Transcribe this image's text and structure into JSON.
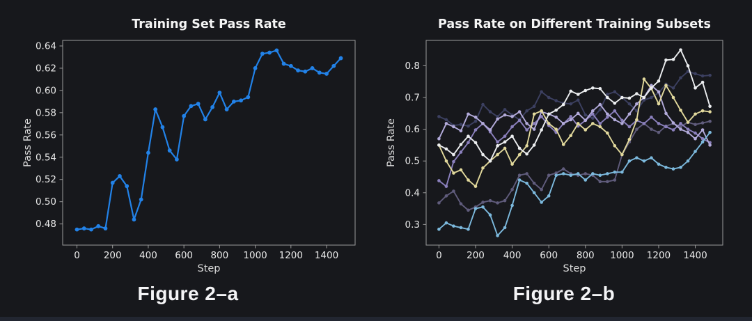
{
  "page": {
    "background": "#17181c",
    "bottom_bar_color": "#222631",
    "axis_color": "#9b9b9b",
    "tick_label_color": "#eaeaea",
    "title_color": "#f5f5f5",
    "axis_label_color": "#dcdcdc"
  },
  "captions": [
    "Figure 2–a",
    "Figure 2–b"
  ],
  "chart_data": [
    {
      "type": "line",
      "title": "Training Set Pass Rate",
      "xlabel": "Step",
      "ylabel": "Pass Rate",
      "grid": false,
      "legend": "none",
      "xlim": [
        -80,
        1560
      ],
      "ylim": [
        0.461,
        0.645
      ],
      "xticks": {
        "values": [
          0,
          200,
          400,
          600,
          800,
          1000,
          1200,
          1400
        ],
        "labels": [
          "0",
          "200",
          "400",
          "600",
          "800",
          "1000",
          "1200",
          "1400"
        ]
      },
      "yticks": {
        "values": [
          0.48,
          0.5,
          0.52,
          0.54,
          0.56,
          0.58,
          0.6,
          0.62,
          0.64
        ],
        "labels": [
          "0.48",
          "0.50",
          "0.52",
          "0.54",
          "0.56",
          "0.58",
          "0.60",
          "0.62",
          "0.64"
        ]
      },
      "x": [
        0,
        40,
        80,
        120,
        160,
        200,
        240,
        280,
        320,
        360,
        400,
        440,
        480,
        520,
        560,
        600,
        640,
        680,
        720,
        760,
        800,
        840,
        880,
        920,
        960,
        1000,
        1040,
        1080,
        1120,
        1160,
        1200,
        1240,
        1280,
        1320,
        1360,
        1400,
        1440,
        1480
      ],
      "series": [
        {
          "name": "training-set-pass-rate",
          "color": "#2282e8",
          "line_width": 2.2,
          "marker_r": 2.9,
          "values": [
            0.475,
            0.476,
            0.475,
            0.478,
            0.476,
            0.517,
            0.523,
            0.514,
            0.484,
            0.502,
            0.544,
            0.583,
            0.567,
            0.546,
            0.538,
            0.577,
            0.586,
            0.588,
            0.574,
            0.585,
            0.598,
            0.583,
            0.59,
            0.591,
            0.594,
            0.62,
            0.633,
            0.634,
            0.636,
            0.624,
            0.622,
            0.618,
            0.617,
            0.62,
            0.616,
            0.615,
            0.622,
            0.629
          ]
        }
      ]
    },
    {
      "type": "line",
      "title": "Pass Rate on Different Training Subsets",
      "xlabel": "Step",
      "ylabel": "Pass Rate",
      "grid": false,
      "legend": "none",
      "xlim": [
        -70,
        1550
      ],
      "ylim": [
        0.235,
        0.88
      ],
      "xticks": {
        "values": [
          0,
          200,
          400,
          600,
          800,
          1000,
          1200,
          1400
        ],
        "labels": [
          "0",
          "200",
          "400",
          "600",
          "800",
          "1000",
          "1200",
          "1400"
        ]
      },
      "yticks": {
        "values": [
          0.3,
          0.4,
          0.5,
          0.6,
          0.7,
          0.8
        ],
        "labels": [
          "0.3",
          "0.4",
          "0.5",
          "0.6",
          "0.7",
          "0.8"
        ]
      },
      "x": [
        0,
        40,
        80,
        120,
        160,
        200,
        240,
        280,
        320,
        360,
        400,
        440,
        480,
        520,
        560,
        600,
        640,
        680,
        720,
        760,
        800,
        840,
        880,
        920,
        960,
        1000,
        1040,
        1080,
        1120,
        1160,
        1200,
        1240,
        1280,
        1320,
        1360,
        1400,
        1440,
        1480
      ],
      "series": [
        {
          "name": "subset-navy",
          "color": "#3c4061",
          "line_width": 1.9,
          "marker_r": 2.3,
          "values": [
            0.64,
            0.63,
            0.612,
            0.615,
            0.61,
            0.625,
            0.678,
            0.655,
            0.64,
            0.662,
            0.645,
            0.63,
            0.658,
            0.672,
            0.718,
            0.7,
            0.69,
            0.682,
            0.68,
            0.692,
            0.645,
            0.635,
            0.662,
            0.71,
            0.718,
            0.7,
            0.68,
            0.658,
            0.692,
            0.7,
            0.715,
            0.742,
            0.73,
            0.762,
            0.782,
            0.775,
            0.768,
            0.77
          ]
        },
        {
          "name": "subset-slate",
          "color": "#605c7c",
          "line_width": 1.9,
          "marker_r": 2.3,
          "values": [
            0.368,
            0.39,
            0.405,
            0.365,
            0.345,
            0.355,
            0.37,
            0.375,
            0.368,
            0.375,
            0.41,
            0.455,
            0.46,
            0.43,
            0.41,
            0.455,
            0.462,
            0.475,
            0.46,
            0.455,
            0.46,
            0.455,
            0.435,
            0.435,
            0.44,
            0.52,
            0.56,
            0.6,
            0.618,
            0.6,
            0.59,
            0.61,
            0.618,
            0.608,
            0.622,
            0.615,
            0.62,
            0.625
          ]
        },
        {
          "name": "subset-purple",
          "color": "#8b80bd",
          "line_width": 1.9,
          "marker_r": 2.3,
          "values": [
            0.438,
            0.42,
            0.498,
            0.528,
            0.558,
            0.598,
            0.618,
            0.592,
            0.56,
            0.578,
            0.608,
            0.628,
            0.598,
            0.618,
            0.64,
            0.612,
            0.59,
            0.618,
            0.64,
            0.61,
            0.628,
            0.648,
            0.618,
            0.638,
            0.658,
            0.628,
            0.608,
            0.628,
            0.618,
            0.638,
            0.618,
            0.608,
            0.598,
            0.618,
            0.6,
            0.588,
            0.57,
            0.558
          ]
        },
        {
          "name": "subset-lavender",
          "color": "#b3abdb",
          "line_width": 1.9,
          "marker_r": 2.3,
          "values": [
            0.57,
            0.618,
            0.608,
            0.595,
            0.648,
            0.638,
            0.618,
            0.598,
            0.632,
            0.645,
            0.64,
            0.655,
            0.618,
            0.6,
            0.655,
            0.648,
            0.638,
            0.618,
            0.63,
            0.65,
            0.628,
            0.658,
            0.678,
            0.648,
            0.63,
            0.618,
            0.648,
            0.68,
            0.7,
            0.738,
            0.718,
            0.65,
            0.62,
            0.6,
            0.59,
            0.57,
            0.598,
            0.55
          ]
        },
        {
          "name": "subset-khaki",
          "color": "#e2d99c",
          "line_width": 1.9,
          "marker_r": 2.3,
          "values": [
            0.55,
            0.5,
            0.462,
            0.472,
            0.44,
            0.42,
            0.478,
            0.5,
            0.52,
            0.54,
            0.49,
            0.52,
            0.548,
            0.648,
            0.658,
            0.618,
            0.6,
            0.552,
            0.58,
            0.618,
            0.598,
            0.618,
            0.608,
            0.588,
            0.548,
            0.52,
            0.568,
            0.63,
            0.758,
            0.728,
            0.68,
            0.738,
            0.7,
            0.66,
            0.622,
            0.648,
            0.658,
            0.655
          ]
        },
        {
          "name": "subset-ivory",
          "color": "#eceef0",
          "line_width": 1.9,
          "marker_r": 2.3,
          "values": [
            0.55,
            0.538,
            0.52,
            0.552,
            0.578,
            0.558,
            0.52,
            0.5,
            0.548,
            0.56,
            0.578,
            0.54,
            0.522,
            0.55,
            0.598,
            0.648,
            0.66,
            0.678,
            0.72,
            0.71,
            0.722,
            0.73,
            0.728,
            0.7,
            0.682,
            0.7,
            0.698,
            0.712,
            0.7,
            0.73,
            0.752,
            0.818,
            0.82,
            0.85,
            0.8,
            0.73,
            0.748,
            0.672
          ]
        },
        {
          "name": "subset-sky",
          "color": "#7cb9dd",
          "line_width": 1.9,
          "marker_r": 2.3,
          "values": [
            0.285,
            0.305,
            0.295,
            0.29,
            0.285,
            0.35,
            0.355,
            0.33,
            0.265,
            0.29,
            0.36,
            0.44,
            0.43,
            0.4,
            0.37,
            0.39,
            0.455,
            0.46,
            0.455,
            0.46,
            0.44,
            0.46,
            0.455,
            0.46,
            0.465,
            0.465,
            0.5,
            0.51,
            0.5,
            0.51,
            0.49,
            0.48,
            0.475,
            0.48,
            0.5,
            0.53,
            0.56,
            0.59
          ]
        }
      ]
    }
  ]
}
